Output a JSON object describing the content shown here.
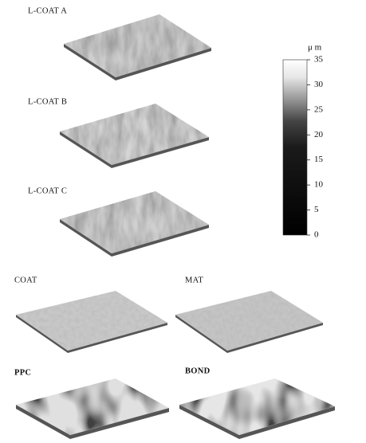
{
  "panels": [
    {
      "label": "L-COAT A"
    },
    {
      "label": "L-COAT B"
    },
    {
      "label": "L-COAT C"
    },
    {
      "label": "COAT"
    },
    {
      "label": "MAT"
    },
    {
      "label": "PPC"
    },
    {
      "label": "BOND"
    }
  ],
  "colorbar": {
    "unit": "μ m",
    "lim": [
      0,
      35
    ],
    "ticks": [
      0,
      5,
      10,
      15,
      20,
      25,
      30,
      35
    ]
  }
}
